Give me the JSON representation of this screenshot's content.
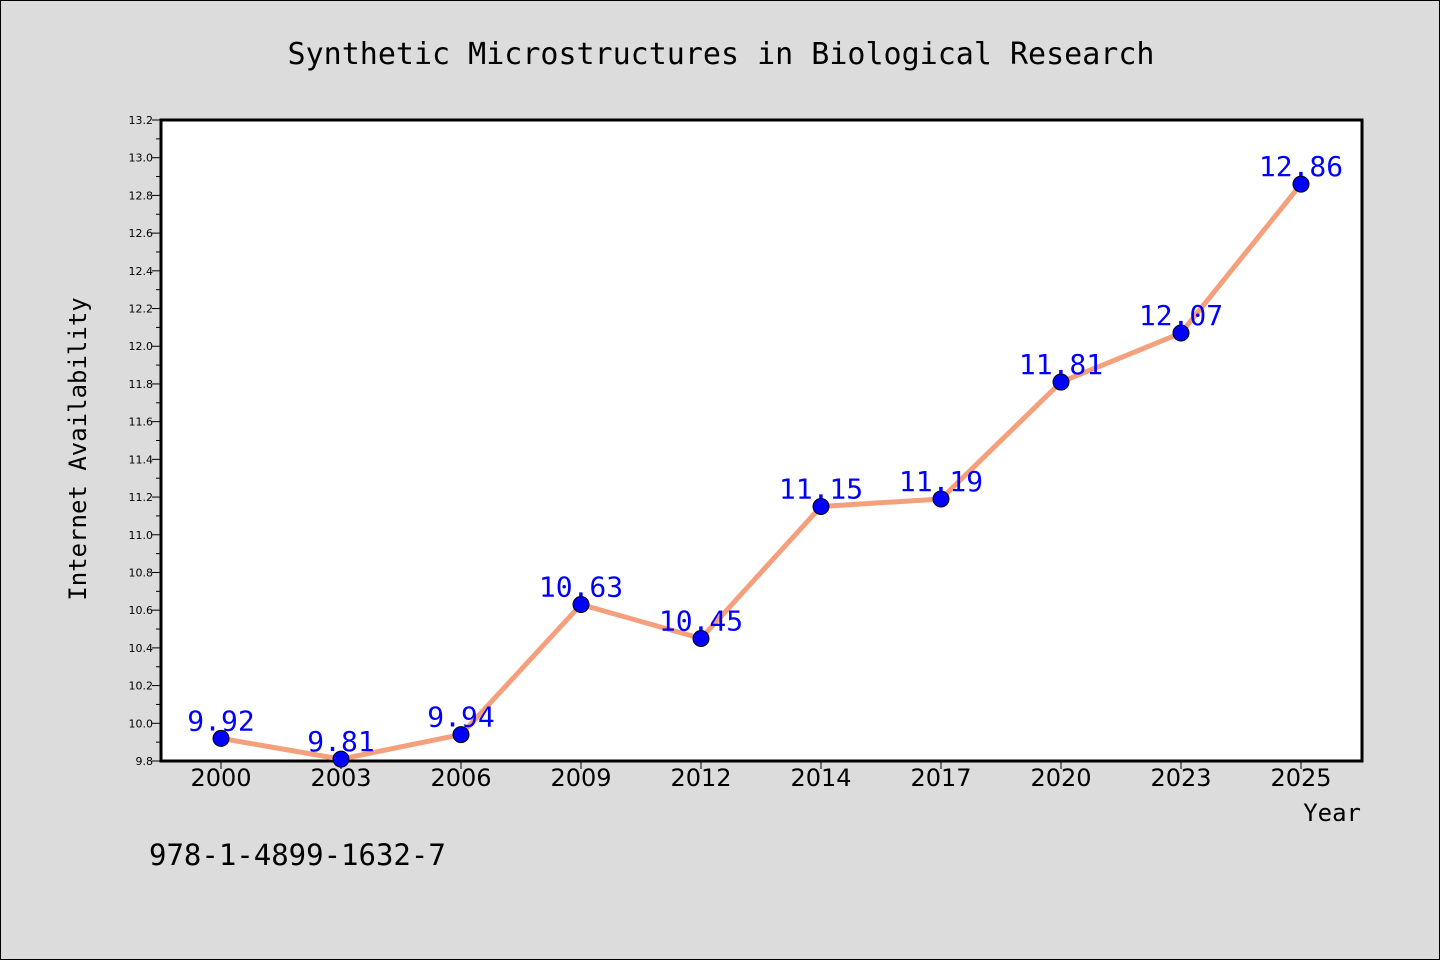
{
  "chart_data": {
    "type": "line",
    "title": "Synthetic Microstructures in Biological Research",
    "xlabel": "Year",
    "ylabel": "Internet Availability",
    "footer": "978-1-4899-1632-7",
    "categories": [
      "2000",
      "2003",
      "2006",
      "2009",
      "2012",
      "2014",
      "2017",
      "2020",
      "2023",
      "2025"
    ],
    "series": [
      {
        "values": [
          9.92,
          9.81,
          9.94,
          10.63,
          10.45,
          11.15,
          11.19,
          11.81,
          12.07,
          12.86
        ]
      }
    ],
    "data_labels": [
      "9.92",
      "9.81",
      "9.94",
      "10.63",
      "10.45",
      "11.15",
      "11.19",
      "11.81",
      "12.07",
      "12.86"
    ],
    "ylim": [
      9.8,
      13.2
    ],
    "yticks": [
      "9.8",
      "10.0",
      "10.2",
      "10.4",
      "10.6",
      "10.8",
      "11.0",
      "11.2",
      "11.4",
      "11.6",
      "11.8",
      "12.0",
      "12.2",
      "12.4",
      "12.6",
      "12.8",
      "13.0",
      "13.2"
    ],
    "grid": false,
    "colors": {
      "background": "#dcdcdc",
      "plot_background": "#ffffff",
      "line": "#f4a07c",
      "marker": "#0000ff",
      "data_label": "#0000ff",
      "axis": "#000000",
      "text": "#000000"
    }
  }
}
